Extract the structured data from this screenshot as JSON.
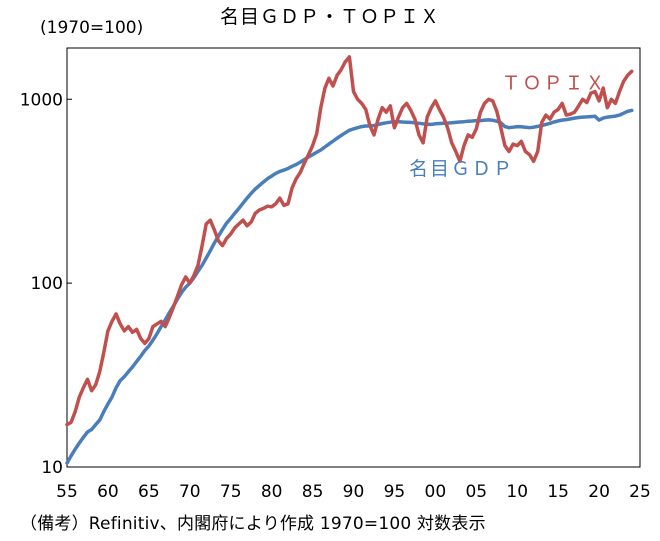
{
  "chart_data": {
    "type": "line",
    "title": "名目ＧＤＰ・ＴＯＰＩＸ",
    "unit_label": "(1970=100)",
    "note": "（備考）Refinitiv、内閣府により作成 1970=100 対数表示",
    "y_scale": "log",
    "ylim": [
      10,
      1900
    ],
    "xlim": [
      1955,
      2025
    ],
    "x_ticks": [
      "55",
      "60",
      "65",
      "70",
      "75",
      "80",
      "85",
      "90",
      "95",
      "00",
      "05",
      "10",
      "15",
      "20",
      "25"
    ],
    "y_ticks": [
      "10",
      "100",
      "1000"
    ],
    "legend": "inline labels near lines",
    "series": [
      {
        "name": "ＴＯＰＩＸ",
        "color": "#c0504d",
        "x": [
          1955.0,
          1955.5,
          1956.0,
          1956.5,
          1957.0,
          1957.5,
          1958.0,
          1958.5,
          1959.0,
          1959.5,
          1960.0,
          1960.5,
          1961.0,
          1961.5,
          1962.0,
          1962.5,
          1963.0,
          1963.5,
          1964.0,
          1964.5,
          1965.0,
          1965.5,
          1966.0,
          1966.5,
          1967.0,
          1967.5,
          1968.0,
          1968.5,
          1969.0,
          1969.5,
          1970.0,
          1970.5,
          1971.0,
          1971.5,
          1972.0,
          1972.5,
          1973.0,
          1973.5,
          1974.0,
          1974.5,
          1975.0,
          1975.5,
          1976.0,
          1976.5,
          1977.0,
          1977.5,
          1978.0,
          1978.5,
          1979.0,
          1979.5,
          1980.0,
          1980.5,
          1981.0,
          1981.5,
          1982.0,
          1982.5,
          1983.0,
          1983.5,
          1984.0,
          1984.5,
          1985.0,
          1985.5,
          1986.0,
          1986.5,
          1987.0,
          1987.5,
          1988.0,
          1988.5,
          1989.0,
          1989.5,
          1990.0,
          1990.5,
          1991.0,
          1991.5,
          1992.0,
          1992.5,
          1993.0,
          1993.5,
          1994.0,
          1994.5,
          1995.0,
          1995.5,
          1996.0,
          1996.5,
          1997.0,
          1997.5,
          1998.0,
          1998.5,
          1999.0,
          1999.5,
          2000.0,
          2000.5,
          2001.0,
          2001.5,
          2002.0,
          2002.5,
          2003.0,
          2003.5,
          2004.0,
          2004.5,
          2005.0,
          2005.5,
          2006.0,
          2006.5,
          2007.0,
          2007.5,
          2008.0,
          2008.5,
          2009.0,
          2009.5,
          2010.0,
          2010.5,
          2011.0,
          2011.5,
          2012.0,
          2012.5,
          2013.0,
          2013.5,
          2014.0,
          2014.5,
          2015.0,
          2015.5,
          2016.0,
          2016.5,
          2017.0,
          2017.5,
          2018.0,
          2018.5,
          2019.0,
          2019.5,
          2020.0,
          2020.5,
          2021.0,
          2021.5,
          2022.0,
          2022.5,
          2023.0,
          2023.5,
          2024.0
        ],
        "values": [
          17,
          17.5,
          20,
          24,
          27,
          30,
          26,
          28,
          33,
          42,
          55,
          62,
          68,
          60,
          55,
          58,
          54,
          56,
          50,
          47,
          50,
          58,
          60,
          62,
          58,
          65,
          74,
          85,
          98,
          108,
          100,
          110,
          125,
          160,
          210,
          220,
          195,
          170,
          160,
          175,
          185,
          200,
          210,
          220,
          205,
          215,
          240,
          250,
          255,
          262,
          260,
          270,
          290,
          265,
          270,
          330,
          370,
          400,
          450,
          500,
          560,
          650,
          900,
          1150,
          1300,
          1180,
          1350,
          1450,
          1600,
          1700,
          1100,
          1000,
          950,
          880,
          720,
          640,
          780,
          900,
          850,
          920,
          700,
          800,
          900,
          950,
          870,
          780,
          640,
          580,
          800,
          900,
          980,
          880,
          800,
          700,
          580,
          520,
          460,
          560,
          640,
          620,
          690,
          850,
          950,
          1000,
          980,
          860,
          700,
          560,
          520,
          570,
          560,
          590,
          520,
          500,
          460,
          520,
          750,
          820,
          780,
          850,
          880,
          950,
          820,
          830,
          850,
          920,
          1000,
          960,
          1080,
          1100,
          980,
          1150,
          900,
          1000,
          950,
          1100,
          1250,
          1350,
          1420
        ]
      },
      {
        "name": "名目ＧＤＰ",
        "color": "#4a7ebb",
        "x": [
          1955.0,
          1955.5,
          1956.0,
          1956.5,
          1957.0,
          1957.5,
          1958.0,
          1958.5,
          1959.0,
          1959.5,
          1960.0,
          1960.5,
          1961.0,
          1961.5,
          1962.0,
          1962.5,
          1963.0,
          1963.5,
          1964.0,
          1964.5,
          1965.0,
          1965.5,
          1966.0,
          1966.5,
          1967.0,
          1967.5,
          1968.0,
          1968.5,
          1969.0,
          1969.5,
          1970.0,
          1970.5,
          1971.0,
          1971.5,
          1972.0,
          1972.5,
          1973.0,
          1973.5,
          1974.0,
          1974.5,
          1975.0,
          1975.5,
          1976.0,
          1976.5,
          1977.0,
          1977.5,
          1978.0,
          1978.5,
          1979.0,
          1979.5,
          1980.0,
          1980.5,
          1981.0,
          1981.5,
          1982.0,
          1982.5,
          1983.0,
          1983.5,
          1984.0,
          1984.5,
          1985.0,
          1985.5,
          1986.0,
          1986.5,
          1987.0,
          1987.5,
          1988.0,
          1988.5,
          1989.0,
          1989.5,
          1990.0,
          1990.5,
          1991.0,
          1991.5,
          1992.0,
          1992.5,
          1993.0,
          1993.5,
          1994.0,
          1994.5,
          1995.0,
          1995.5,
          1996.0,
          1996.5,
          1997.0,
          1997.5,
          1998.0,
          1998.5,
          1999.0,
          1999.5,
          2000.0,
          2000.5,
          2001.0,
          2001.5,
          2002.0,
          2002.5,
          2003.0,
          2003.5,
          2004.0,
          2004.5,
          2005.0,
          2005.5,
          2006.0,
          2006.5,
          2007.0,
          2007.5,
          2008.0,
          2008.5,
          2009.0,
          2009.5,
          2010.0,
          2010.5,
          2011.0,
          2011.5,
          2012.0,
          2012.5,
          2013.0,
          2013.5,
          2014.0,
          2014.5,
          2015.0,
          2015.5,
          2016.0,
          2016.5,
          2017.0,
          2017.5,
          2018.0,
          2018.5,
          2019.0,
          2019.5,
          2020.0,
          2020.5,
          2021.0,
          2021.5,
          2022.0,
          2022.5,
          2023.0,
          2023.5,
          2024.0
        ],
        "values": [
          10.5,
          11.5,
          12.5,
          13.5,
          14.5,
          15.5,
          16,
          17,
          18,
          20,
          22,
          24,
          27,
          29.5,
          31,
          33,
          35,
          37.5,
          40,
          43,
          45.5,
          49,
          53,
          58,
          63,
          69,
          75,
          82,
          89,
          95,
          100,
          107,
          116,
          125,
          137,
          150,
          165,
          180,
          196,
          212,
          225,
          240,
          255,
          272,
          290,
          308,
          325,
          340,
          355,
          370,
          382,
          395,
          405,
          412,
          420,
          432,
          442,
          455,
          470,
          485,
          500,
          515,
          530,
          550,
          570,
          592,
          614,
          636,
          657,
          678,
          690,
          700,
          710,
          715,
          715,
          720,
          728,
          738,
          745,
          750,
          755,
          755,
          752,
          750,
          748,
          745,
          740,
          735,
          730,
          730,
          735,
          738,
          740,
          742,
          745,
          748,
          752,
          755,
          760,
          762,
          765,
          765,
          770,
          772,
          768,
          760,
          745,
          710,
          700,
          705,
          710,
          708,
          705,
          700,
          705,
          712,
          720,
          730,
          740,
          752,
          763,
          770,
          775,
          782,
          790,
          796,
          800,
          802,
          805,
          808,
          770,
          790,
          800,
          805,
          810,
          820,
          840,
          860,
          870
        ]
      }
    ]
  }
}
